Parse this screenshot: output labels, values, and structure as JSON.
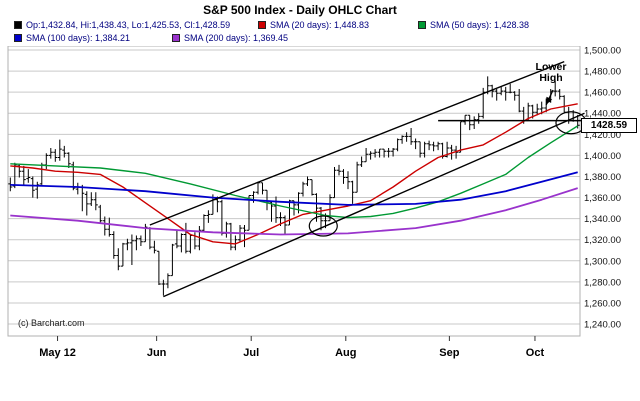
{
  "title": "S&P 500 Index - Daily OHLC Chart",
  "legend": {
    "ohlc": {
      "label": "Op:1,432.84, Hi:1,438.43, Lo:1,425.53, Cl:1,428.59",
      "color": "#000000"
    },
    "sma20": {
      "label": "SMA (20 days): 1,448.83",
      "color": "#cc0000"
    },
    "sma50": {
      "label": "SMA (50 days): 1,428.38",
      "color": "#009933"
    },
    "sma100": {
      "label": "SMA (100 days): 1,384.21",
      "color": "#0000cc"
    },
    "sma200": {
      "label": "SMA (200 days): 1,369.45",
      "color": "#9933cc"
    }
  },
  "annotations": {
    "lower_high": "Lower High"
  },
  "watermark": "(c) Barchart.com",
  "colors": {
    "bars": "#000000",
    "grid": "#c9c9c9",
    "plot_border": "#b0b0b0",
    "axis_text": "#111111",
    "legend_text": "#000080",
    "trendline": "#000000",
    "background": "#ffffff"
  },
  "chart_data": {
    "type": "ohlc",
    "title": "S&P 500 Index - Daily OHLC Chart",
    "grid": "horizontal-only",
    "x_axis": {
      "labels": [
        {
          "text": "May 12",
          "day": 11
        },
        {
          "text": "Jun",
          "day": 33
        },
        {
          "text": "Jul",
          "day": 54
        },
        {
          "text": "Aug",
          "day": 75
        },
        {
          "text": "Sep",
          "day": 98
        },
        {
          "text": "Oct",
          "day": 117
        }
      ]
    },
    "y_axis": {
      "side": "right",
      "ticks": [
        1500,
        1480,
        1460,
        1440,
        1420,
        1400,
        1380,
        1360,
        1340,
        1320,
        1300,
        1280,
        1260,
        1240
      ],
      "range": [
        1240,
        1500
      ],
      "last_price": 1428.59,
      "last_price_label": "1428.59"
    },
    "ohlc_format": [
      "open",
      "high",
      "low",
      "close"
    ],
    "ohlc": [
      [
        1373,
        1379,
        1366,
        1370
      ],
      [
        1371,
        1393,
        1369,
        1391
      ],
      [
        1390,
        1392,
        1379,
        1385
      ],
      [
        1385,
        1390,
        1371,
        1377
      ],
      [
        1378,
        1387,
        1374,
        1379
      ],
      [
        1378,
        1380,
        1360,
        1367
      ],
      [
        1368,
        1375,
        1359,
        1372
      ],
      [
        1373,
        1393,
        1372,
        1391
      ],
      [
        1391,
        1402,
        1387,
        1400
      ],
      [
        1400,
        1407,
        1397,
        1403
      ],
      [
        1403,
        1406,
        1394,
        1398
      ],
      [
        1398,
        1415,
        1395,
        1406
      ],
      [
        1405,
        1409,
        1398,
        1402
      ],
      [
        1402,
        1403,
        1388,
        1392
      ],
      [
        1391,
        1394,
        1367,
        1369
      ],
      [
        1368,
        1374,
        1363,
        1370
      ],
      [
        1370,
        1372,
        1347,
        1364
      ],
      [
        1363,
        1366,
        1343,
        1354
      ],
      [
        1354,
        1365,
        1352,
        1358
      ],
      [
        1358,
        1365,
        1348,
        1353
      ],
      [
        1351,
        1353,
        1336,
        1338
      ],
      [
        1338,
        1342,
        1324,
        1330
      ],
      [
        1330,
        1341,
        1323,
        1325
      ],
      [
        1325,
        1328,
        1302,
        1305
      ],
      [
        1305,
        1312,
        1291,
        1295
      ],
      [
        1295,
        1317,
        1295,
        1316
      ],
      [
        1316,
        1321,
        1310,
        1317
      ],
      [
        1317,
        1325,
        1296,
        1319
      ],
      [
        1319,
        1324,
        1310,
        1321
      ],
      [
        1321,
        1324,
        1314,
        1318
      ],
      [
        1318,
        1335,
        1318,
        1332
      ],
      [
        1331,
        1332,
        1311,
        1313
      ],
      [
        1313,
        1319,
        1307,
        1310
      ],
      [
        1309,
        1309,
        1277,
        1278
      ],
      [
        1278,
        1282,
        1267,
        1278
      ],
      [
        1278,
        1288,
        1274,
        1286
      ],
      [
        1286,
        1316,
        1286,
        1315
      ],
      [
        1316,
        1329,
        1312,
        1314
      ],
      [
        1314,
        1326,
        1308,
        1325
      ],
      [
        1325,
        1336,
        1307,
        1309
      ],
      [
        1309,
        1325,
        1307,
        1324
      ],
      [
        1324,
        1327,
        1311,
        1314
      ],
      [
        1314,
        1333,
        1310,
        1329
      ],
      [
        1329,
        1344,
        1328,
        1343
      ],
      [
        1343,
        1348,
        1336,
        1344
      ],
      [
        1344,
        1363,
        1344,
        1358
      ],
      [
        1358,
        1361,
        1346,
        1356
      ],
      [
        1356,
        1358,
        1324,
        1326
      ],
      [
        1326,
        1337,
        1322,
        1335
      ],
      [
        1335,
        1336,
        1310,
        1313
      ],
      [
        1313,
        1324,
        1310,
        1320
      ],
      [
        1320,
        1334,
        1318,
        1331
      ],
      [
        1331,
        1334,
        1313,
        1329
      ],
      [
        1329,
        1362,
        1329,
        1362
      ],
      [
        1362,
        1366,
        1355,
        1365
      ],
      [
        1365,
        1375,
        1363,
        1374
      ],
      [
        1374,
        1374,
        1363,
        1367
      ],
      [
        1367,
        1367,
        1348,
        1355
      ],
      [
        1355,
        1356,
        1337,
        1352
      ],
      [
        1352,
        1361,
        1336,
        1341
      ],
      [
        1341,
        1346,
        1333,
        1341
      ],
      [
        1341,
        1343,
        1325,
        1334
      ],
      [
        1334,
        1358,
        1334,
        1357
      ],
      [
        1357,
        1357,
        1343,
        1353
      ],
      [
        1353,
        1365,
        1345,
        1364
      ],
      [
        1364,
        1375,
        1361,
        1373
      ],
      [
        1373,
        1380,
        1371,
        1377
      ],
      [
        1377,
        1377,
        1362,
        1363
      ],
      [
        1363,
        1364,
        1337,
        1350
      ],
      [
        1350,
        1351,
        1329,
        1338
      ],
      [
        1338,
        1345,
        1331,
        1338
      ],
      [
        1338,
        1363,
        1338,
        1360
      ],
      [
        1360,
        1389,
        1360,
        1386
      ],
      [
        1386,
        1391,
        1381,
        1385
      ],
      [
        1385,
        1387,
        1373,
        1379
      ],
      [
        1379,
        1385,
        1368,
        1375
      ],
      [
        1375,
        1376,
        1354,
        1365
      ],
      [
        1365,
        1394,
        1365,
        1391
      ],
      [
        1391,
        1399,
        1389,
        1394
      ],
      [
        1394,
        1407,
        1394,
        1401
      ],
      [
        1401,
        1404,
        1396,
        1402
      ],
      [
        1402,
        1406,
        1398,
        1403
      ],
      [
        1403,
        1406,
        1398,
        1406
      ],
      [
        1406,
        1406,
        1398,
        1404
      ],
      [
        1404,
        1407,
        1398,
        1404
      ],
      [
        1404,
        1407,
        1399,
        1406
      ],
      [
        1406,
        1416,
        1404,
        1415
      ],
      [
        1415,
        1419,
        1411,
        1418
      ],
      [
        1418,
        1422,
        1413,
        1418
      ],
      [
        1418,
        1426,
        1410,
        1413
      ],
      [
        1413,
        1416,
        1406,
        1413
      ],
      [
        1413,
        1413,
        1398,
        1402
      ],
      [
        1402,
        1413,
        1398,
        1411
      ],
      [
        1411,
        1414,
        1405,
        1410
      ],
      [
        1410,
        1413,
        1404,
        1409
      ],
      [
        1409,
        1413,
        1405,
        1411
      ],
      [
        1411,
        1412,
        1397,
        1399
      ],
      [
        1399,
        1413,
        1398,
        1407
      ],
      [
        1407,
        1410,
        1396,
        1405
      ],
      [
        1405,
        1409,
        1397,
        1403
      ],
      [
        1403,
        1432,
        1403,
        1432
      ],
      [
        1432,
        1438,
        1429,
        1438
      ],
      [
        1438,
        1438,
        1424,
        1429
      ],
      [
        1429,
        1437,
        1425,
        1434
      ],
      [
        1434,
        1440,
        1430,
        1437
      ],
      [
        1437,
        1464,
        1435,
        1460
      ],
      [
        1460,
        1475,
        1458,
        1466
      ],
      [
        1466,
        1467,
        1455,
        1461
      ],
      [
        1461,
        1463,
        1452,
        1459
      ],
      [
        1459,
        1465,
        1457,
        1461
      ],
      [
        1461,
        1465,
        1452,
        1460
      ],
      [
        1460,
        1468,
        1459,
        1460
      ],
      [
        1460,
        1461,
        1452,
        1457
      ],
      [
        1457,
        1463,
        1441,
        1442
      ],
      [
        1442,
        1446,
        1430,
        1433
      ],
      [
        1433,
        1450,
        1433,
        1447
      ],
      [
        1447,
        1448,
        1435,
        1441
      ],
      [
        1441,
        1449,
        1438,
        1444
      ],
      [
        1444,
        1451,
        1439,
        1445
      ],
      [
        1445,
        1454,
        1441,
        1451
      ],
      [
        1451,
        1463,
        1450,
        1461
      ],
      [
        1461,
        1471,
        1456,
        1461
      ],
      [
        1461,
        1463,
        1453,
        1456
      ],
      [
        1456,
        1457,
        1441,
        1441
      ],
      [
        1441,
        1446,
        1430,
        1433
      ],
      [
        1433,
        1443,
        1432,
        1433
      ],
      [
        1432.84,
        1438.43,
        1425.53,
        1428.59
      ]
    ],
    "sma": [
      {
        "name": "sma20",
        "period": 20,
        "color": "#cc0000",
        "width": 1.4,
        "points": [
          [
            0,
            1390
          ],
          [
            5,
            1388
          ],
          [
            10,
            1385
          ],
          [
            15,
            1384
          ],
          [
            20,
            1382
          ],
          [
            25,
            1370
          ],
          [
            30,
            1355
          ],
          [
            35,
            1340
          ],
          [
            40,
            1325
          ],
          [
            45,
            1318
          ],
          [
            50,
            1316
          ],
          [
            55,
            1325
          ],
          [
            60,
            1335
          ],
          [
            65,
            1344
          ],
          [
            70,
            1348
          ],
          [
            75,
            1352
          ],
          [
            80,
            1357
          ],
          [
            85,
            1370
          ],
          [
            90,
            1385
          ],
          [
            95,
            1398
          ],
          [
            100,
            1405
          ],
          [
            105,
            1410
          ],
          [
            110,
            1422
          ],
          [
            115,
            1435
          ],
          [
            120,
            1444
          ],
          [
            126,
            1449
          ]
        ]
      },
      {
        "name": "sma50",
        "period": 50,
        "color": "#009933",
        "width": 1.4,
        "points": [
          [
            0,
            1392
          ],
          [
            10,
            1390
          ],
          [
            20,
            1388
          ],
          [
            30,
            1383
          ],
          [
            40,
            1373
          ],
          [
            50,
            1362
          ],
          [
            60,
            1352
          ],
          [
            70,
            1343
          ],
          [
            75,
            1341
          ],
          [
            80,
            1342
          ],
          [
            85,
            1345
          ],
          [
            90,
            1350
          ],
          [
            95,
            1356
          ],
          [
            100,
            1364
          ],
          [
            105,
            1373
          ],
          [
            110,
            1382
          ],
          [
            115,
            1398
          ],
          [
            120,
            1412
          ],
          [
            126,
            1428
          ]
        ]
      },
      {
        "name": "sma100",
        "period": 100,
        "color": "#0000cc",
        "width": 1.8,
        "points": [
          [
            0,
            1372
          ],
          [
            15,
            1370
          ],
          [
            30,
            1366
          ],
          [
            45,
            1360
          ],
          [
            60,
            1356
          ],
          [
            75,
            1353
          ],
          [
            90,
            1354
          ],
          [
            100,
            1358
          ],
          [
            110,
            1366
          ],
          [
            118,
            1375
          ],
          [
            126,
            1384
          ]
        ]
      },
      {
        "name": "sma200",
        "period": 200,
        "color": "#9933cc",
        "width": 1.8,
        "points": [
          [
            0,
            1343
          ],
          [
            15,
            1338
          ],
          [
            30,
            1331
          ],
          [
            45,
            1327
          ],
          [
            60,
            1325
          ],
          [
            75,
            1326
          ],
          [
            90,
            1331
          ],
          [
            100,
            1338
          ],
          [
            110,
            1348
          ],
          [
            118,
            1358
          ],
          [
            126,
            1369
          ]
        ]
      }
    ],
    "trendlines": [
      {
        "name": "channel-lower",
        "from": [
          34,
          1266
        ],
        "to": [
          127.5,
          1440
        ]
      },
      {
        "name": "channel-upper",
        "from": [
          31,
          1334
        ],
        "to": [
          123,
          1489
        ]
      },
      {
        "name": "resistance-horizontal",
        "from": [
          95,
          1433
        ],
        "to": [
          127.5,
          1433
        ]
      }
    ],
    "circles": [
      {
        "day": 69.5,
        "value": 1333,
        "rx": 14,
        "ry": 10
      },
      {
        "day": 124.5,
        "value": 1431,
        "rx": 15,
        "ry": 11
      }
    ],
    "annotation_arrow": {
      "from": [
        120.5,
        1462
      ],
      "to": [
        119,
        1448
      ]
    }
  }
}
